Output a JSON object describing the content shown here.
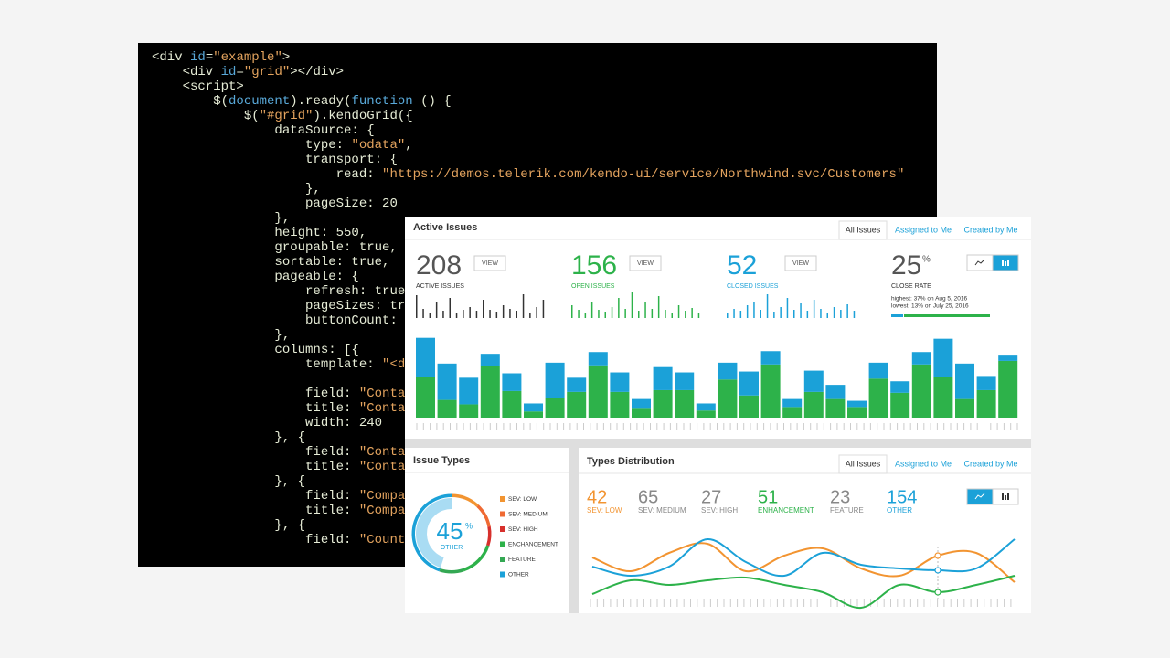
{
  "code": {
    "lines": [
      "<div id=\"example\">",
      "    <div id=\"grid\"></div>",
      "    <script>",
      "        $(document).ready(function () {",
      "            $(\"#grid\").kendoGrid({",
      "                dataSource: {",
      "                    type: \"odata\",",
      "                    transport: {",
      "                        read: \"https://demos.telerik.com/kendo-ui/service/Northwind.svc/Customers\"",
      "                    },",
      "                    pageSize: 20",
      "                },",
      "                height: 550,",
      "                groupable: true,",
      "                sortable: true,",
      "                pageable: {",
      "                    refresh: true",
      "                    pageSizes: tr",
      "                    buttonCount:",
      "                },",
      "                columns: [{",
      "                    template: \"<d",
      "",
      "                    field: \"Conta",
      "                    title: \"Conta",
      "                    width: 240",
      "                }, {",
      "                    field: \"Conta",
      "                    title: \"Conta",
      "                }, {",
      "                    field: \"Compa",
      "                    title: \"Compa",
      "                }, {",
      "                    field: \"Count"
    ]
  },
  "active": {
    "title": "Active Issues",
    "tabs": [
      "All Issues",
      "Assigned to Me",
      "Created by Me"
    ],
    "stats": [
      {
        "value": 208,
        "button": "VIEW",
        "label": "ACTIVE ISSUES",
        "color": "#333333",
        "spark": [
          25,
          10,
          6,
          18,
          8,
          22,
          6,
          9,
          12,
          8,
          20,
          9,
          7,
          14,
          10,
          8,
          26,
          6,
          12,
          20
        ]
      },
      {
        "value": 156,
        "button": "VIEW",
        "label": "OPEN ISSUES",
        "color": "#2db24a",
        "spark": [
          14,
          9,
          6,
          18,
          9,
          7,
          12,
          22,
          10,
          28,
          8,
          18,
          10,
          24,
          9,
          6,
          14,
          8,
          11,
          5
        ]
      },
      {
        "value": 52,
        "button": "VIEW",
        "label": "CLOSED ISSUES",
        "color": "#1ba1d8",
        "spark": [
          6,
          10,
          8,
          14,
          18,
          9,
          26,
          7,
          12,
          22,
          9,
          16,
          8,
          20,
          10,
          6,
          12,
          9,
          15,
          8
        ]
      }
    ],
    "close_rate": {
      "value": 25,
      "unit": "%",
      "label": "CLOSE RATE",
      "highest": "highest: 37% on Aug 5, 2016",
      "lowest": "lowest: 13% on July 25, 2016"
    },
    "chart": {
      "type": "bar",
      "stacked": true,
      "ylim": [
        0,
        100
      ],
      "series": [
        {
          "color": "#2db24a",
          "values": [
            46,
            20,
            15,
            58,
            30,
            7,
            22,
            29,
            59,
            29,
            11,
            31,
            31,
            8,
            43,
            25,
            60,
            12,
            29,
            21,
            12,
            44,
            28,
            60,
            46,
            21,
            31,
            64
          ]
        },
        {
          "color": "#1ba1d8",
          "values": [
            44,
            41,
            30,
            14,
            20,
            9,
            40,
            16,
            15,
            22,
            10,
            26,
            20,
            8,
            19,
            27,
            15,
            9,
            24,
            16,
            7,
            18,
            13,
            14,
            43,
            40,
            16,
            7
          ]
        }
      ]
    }
  },
  "issue_types": {
    "title": "Issue Types",
    "center_value": 45,
    "center_unit": "%",
    "center_label": "OTHER",
    "items": [
      {
        "label": "SEV: LOW",
        "color": "#f29431",
        "value": 12
      },
      {
        "label": "SEV: MEDIUM",
        "color": "#ef6a33",
        "value": 10
      },
      {
        "label": "SEV: HIGH",
        "color": "#d7302c",
        "value": 8
      },
      {
        "label": "ENCHANCEMENT",
        "color": "#2db24a",
        "value": 15
      },
      {
        "label": "FEATURE",
        "color": "#34a853",
        "value": 10
      },
      {
        "label": "OTHER",
        "color": "#1ba1d8",
        "value": 45
      }
    ]
  },
  "distribution": {
    "title": "Types Distribution",
    "tabs": [
      "All Issues",
      "Assigned to Me",
      "Created by Me"
    ],
    "stats": [
      {
        "value": 42,
        "label": "SEV: LOW",
        "color": "#f29431"
      },
      {
        "value": 65,
        "label": "SEV: MEDIUM",
        "color": "#888888"
      },
      {
        "value": 27,
        "label": "SEV: HIGH",
        "color": "#888888"
      },
      {
        "value": 51,
        "label": "ENHANCEMENT",
        "color": "#2db24a"
      },
      {
        "value": 23,
        "label": "FEATURE",
        "color": "#888888"
      },
      {
        "value": 154,
        "label": "OTHER",
        "color": "#1ba1d8"
      }
    ],
    "chart": {
      "type": "line",
      "ylim": [
        0,
        90
      ],
      "marker_index": 9,
      "series": [
        {
          "color": "#f29431",
          "values": [
            60,
            45,
            65,
            75,
            45,
            62,
            70,
            48,
            40,
            62,
            65,
            33
          ]
        },
        {
          "color": "#1ba1d8",
          "values": [
            50,
            40,
            50,
            80,
            55,
            40,
            65,
            52,
            48,
            46,
            48,
            80
          ]
        },
        {
          "color": "#2db24a",
          "values": [
            20,
            35,
            30,
            35,
            38,
            30,
            22,
            5,
            30,
            22,
            30,
            40
          ]
        }
      ]
    }
  }
}
